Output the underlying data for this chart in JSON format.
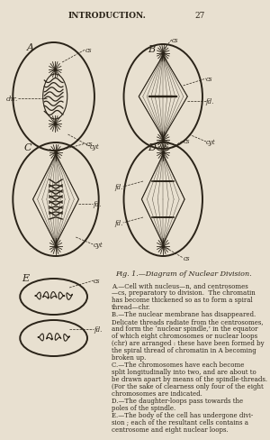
{
  "bg_color": "#e8e0d0",
  "text_color": "#2a2318",
  "header_text": "INTRODUCTION.",
  "page_number": "27",
  "figure_caption": "Fig. 1.—Diagram of Nuclear Division.",
  "caption_lines": [
    "A.—Cell with nucleus—n, and centrosomes",
    "—cs, preparatory to division.  The chromatin",
    "has become thickened so as to form a spiral",
    "thread—chr.",
    "B.—The nuclear membrane has disappeared.",
    "Delicate threads radiate from the centrosomes,",
    "and form the ‘nuclear spindle,’ in the equator",
    "of which eight chromosomes or nuclear loops",
    "(chr) are arranged : these have been formed by",
    "the spiral thread of chromatin in A becoming",
    "broken up.",
    "C.—The chromosomes have each become",
    "split longitudinally into two, and are about to",
    "be drawn apart by means of the spindle-threads.",
    "(For the sake of clearness only four of the eight",
    "chromosomes are indicated.",
    "D.—The daughter-loops pass towards the",
    "poles of the spindle.",
    "E.—The body of the cell has undergone divi-",
    "sion ; each of the resultant cells contains a",
    "centrosome and eight nuclear loops."
  ]
}
